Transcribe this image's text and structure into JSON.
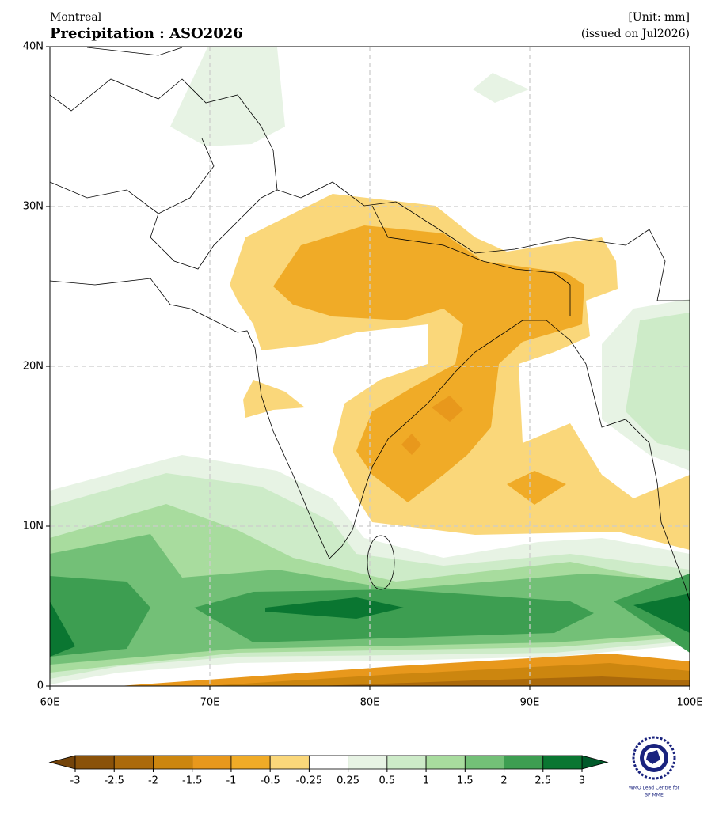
{
  "header": {
    "region": "Montreal",
    "title": "Precipitation : ASO2026",
    "unit": "[Unit: mm]",
    "issued": "(issued on Jul2026)"
  },
  "map": {
    "lon_range": [
      60,
      100
    ],
    "lat_range": [
      0,
      40
    ],
    "lon_ticks": [
      {
        "value": 60,
        "label": "60E"
      },
      {
        "value": 70,
        "label": "70E"
      },
      {
        "value": 80,
        "label": "80E"
      },
      {
        "value": 90,
        "label": "90E"
      },
      {
        "value": 100,
        "label": "100E"
      }
    ],
    "lat_ticks": [
      0,
      {
        "value": 10,
        "label": "10N"
      },
      {
        "value": 20,
        "label": "20N"
      },
      {
        "value": 30,
        "label": "30N"
      },
      {
        "value": 40,
        "label": "40N"
      }
    ],
    "grid": true
  },
  "colorbar": {
    "levels": [
      -3,
      -2.5,
      -2,
      -1.5,
      -1,
      -0.5,
      -0.25,
      0.25,
      0.5,
      1,
      1.5,
      2,
      2.5,
      3
    ],
    "colors": [
      "#8a5209",
      "#ab6a0b",
      "#cc860f",
      "#e8981c",
      "#f0ab27",
      "#fad77a",
      "#ffffff",
      "#e7f3e4",
      "#cdebc8",
      "#a8dc9e",
      "#73c077",
      "#3d9e51",
      "#0a7631"
    ],
    "extend_colors": [
      "#74440a",
      "#005a2a"
    ]
  },
  "logo": {
    "line1": "WMO Lead Centre for",
    "line2": "SP MME"
  }
}
